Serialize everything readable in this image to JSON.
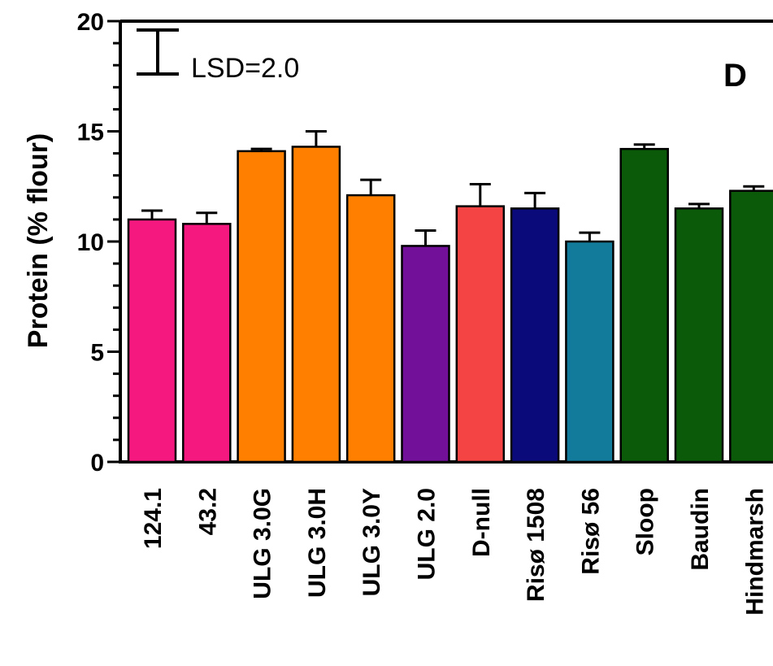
{
  "chart_data": {
    "type": "bar",
    "ylabel": "Protein (% flour)",
    "ylim": [
      0,
      20
    ],
    "yticks": [
      "0",
      "5",
      "10",
      "15",
      "20"
    ],
    "panel_label": "D",
    "lsd_label": "LSD=2.0",
    "lsd_value": 2.0,
    "categories": [
      "124.1",
      "43.2",
      "ULG 3.0G",
      "ULG 3.0H",
      "ULG 3.0Y",
      "ULG 2.0",
      "D-null",
      "Risø 1508",
      "Risø 56",
      "Sloop",
      "Baudin",
      "Hindmarsh"
    ],
    "values": [
      11.0,
      10.8,
      14.1,
      14.3,
      12.1,
      9.8,
      11.6,
      11.5,
      10.0,
      14.2,
      11.5,
      12.3
    ],
    "errors": [
      0.4,
      0.5,
      0.1,
      0.7,
      0.7,
      0.7,
      1.0,
      0.7,
      0.4,
      0.2,
      0.2,
      0.2
    ],
    "colors": [
      "#f5197f",
      "#f5197f",
      "#ff8000",
      "#ff8000",
      "#ff8000",
      "#73109a",
      "#f54444",
      "#0a0a7a",
      "#127a9a",
      "#0a5a0a",
      "#0a5a0a",
      "#0a5a0a"
    ]
  }
}
